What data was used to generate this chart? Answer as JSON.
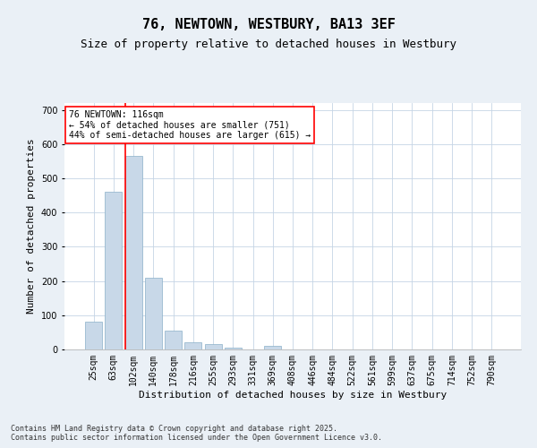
{
  "title": "76, NEWTOWN, WESTBURY, BA13 3EF",
  "subtitle": "Size of property relative to detached houses in Westbury",
  "xlabel": "Distribution of detached houses by size in Westbury",
  "ylabel": "Number of detached properties",
  "categories": [
    "25sqm",
    "63sqm",
    "102sqm",
    "140sqm",
    "178sqm",
    "216sqm",
    "255sqm",
    "293sqm",
    "331sqm",
    "369sqm",
    "408sqm",
    "446sqm",
    "484sqm",
    "522sqm",
    "561sqm",
    "599sqm",
    "637sqm",
    "675sqm",
    "714sqm",
    "752sqm",
    "790sqm"
  ],
  "values": [
    80,
    460,
    565,
    210,
    55,
    20,
    15,
    5,
    0,
    10,
    0,
    0,
    0,
    0,
    0,
    0,
    0,
    0,
    0,
    0,
    0
  ],
  "bar_color": "#c8d8e8",
  "bar_edge_color": "#8ab0c8",
  "vline_color": "red",
  "vline_index": 1.575,
  "annotation_text": "76 NEWTOWN: 116sqm\n← 54% of detached houses are smaller (751)\n44% of semi-detached houses are larger (615) →",
  "annotation_box_color": "white",
  "annotation_box_edge": "red",
  "ylim": [
    0,
    720
  ],
  "yticks": [
    0,
    100,
    200,
    300,
    400,
    500,
    600,
    700
  ],
  "bg_color": "#eaf0f6",
  "plot_bg_color": "white",
  "grid_color": "#c5d5e5",
  "footer1": "Contains HM Land Registry data © Crown copyright and database right 2025.",
  "footer2": "Contains public sector information licensed under the Open Government Licence v3.0.",
  "title_fontsize": 11,
  "subtitle_fontsize": 9,
  "tick_fontsize": 7,
  "ylabel_fontsize": 8,
  "xlabel_fontsize": 8,
  "annotation_fontsize": 7,
  "footer_fontsize": 6
}
